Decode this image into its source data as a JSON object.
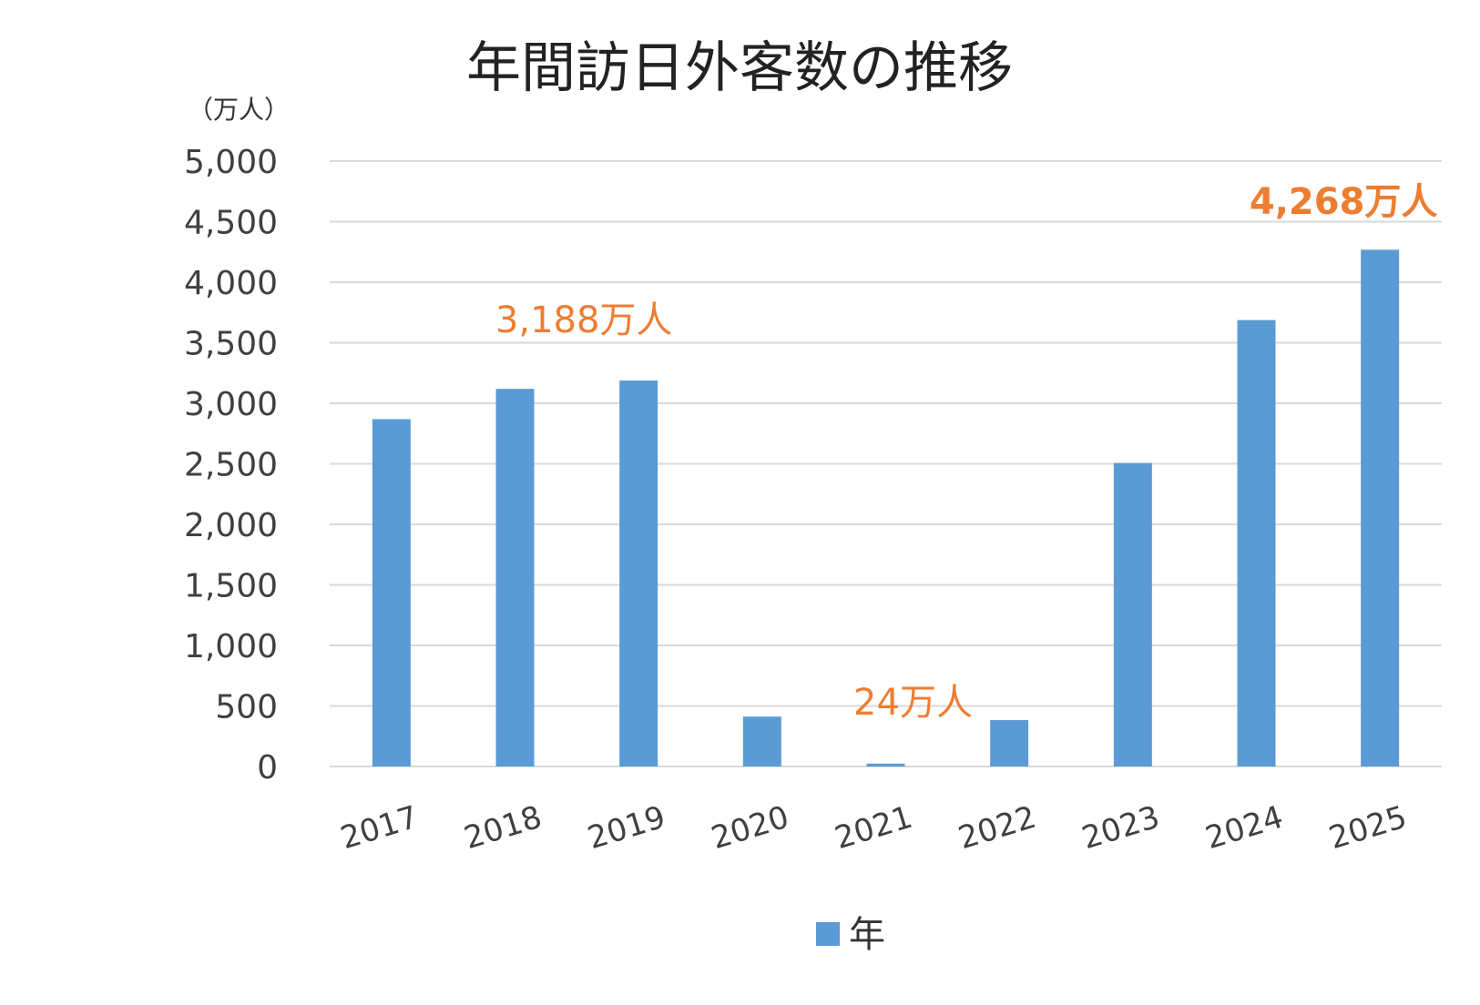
{
  "chart_data": {
    "type": "bar",
    "title": "年間訪日外客数の推移",
    "unit_label": "（万人）",
    "categories": [
      "2017",
      "2018",
      "2019",
      "2020",
      "2021",
      "2022",
      "2023",
      "2024",
      "2025"
    ],
    "series": [
      {
        "name": "年",
        "values": [
          2869,
          3119,
          3188,
          412,
          24,
          383,
          2507,
          3687,
          4268
        ]
      }
    ],
    "ylim": [
      0,
      5000
    ],
    "yticks": [
      0,
      500,
      1000,
      1500,
      2000,
      2500,
      3000,
      3500,
      4000,
      4500,
      5000
    ],
    "ytick_labels": [
      "0",
      "500",
      "1,000",
      "1,500",
      "2,000",
      "2,500",
      "3,000",
      "3,500",
      "4,000",
      "4,500",
      "5,000"
    ],
    "grid": true,
    "legend_position": "bottom",
    "annotations": [
      {
        "text": "3,188万人",
        "category": "2019",
        "bold": false
      },
      {
        "text": "24万人",
        "category": "2021",
        "bold": false
      },
      {
        "text": "4,268万人",
        "category": "2025",
        "bold": true
      }
    ],
    "colors": {
      "bar": "#5B9BD5",
      "annotation": "#ED7D31",
      "grid": "#D9D9D9",
      "axis_text": "#404040",
      "title": "#222222"
    }
  }
}
